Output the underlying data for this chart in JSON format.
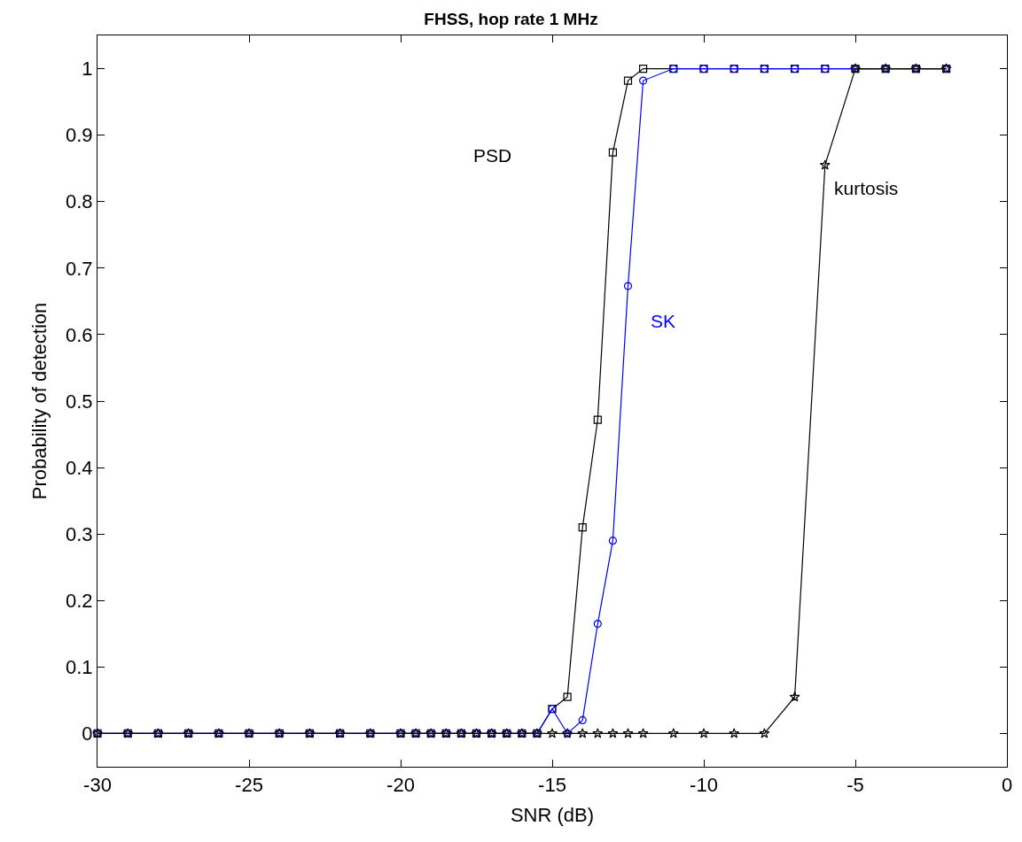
{
  "chart_data": {
    "type": "line",
    "title": "FHSS, hop rate 1 MHz",
    "xlabel": "SNR (dB)",
    "ylabel": "Probability of detection",
    "x": [
      -30,
      -29,
      -28,
      -27,
      -26,
      -25,
      -24,
      -23,
      -22,
      -21,
      -20,
      -19.5,
      -19,
      -18.5,
      -18,
      -17.5,
      -17,
      -16.5,
      -16,
      -15.5,
      -15,
      -14.5,
      -14,
      -13.5,
      -13,
      -12.5,
      -12,
      -11,
      -10,
      -9,
      -8,
      -7,
      -6,
      -5,
      -4,
      -3,
      -2
    ],
    "series": [
      {
        "name": "PSD",
        "color": "#000000",
        "marker": "square",
        "values": [
          0,
          0,
          0,
          0,
          0,
          0,
          0,
          0,
          0,
          0,
          0,
          0,
          0,
          0,
          0,
          0,
          0,
          0,
          0,
          0,
          0.037,
          0.055,
          0.31,
          0.472,
          0.874,
          0.982,
          1,
          1,
          1,
          1,
          1,
          1,
          1,
          1,
          1,
          1,
          1
        ]
      },
      {
        "name": "SK",
        "color": "#0000ff",
        "marker": "circle",
        "values": [
          0,
          0,
          0,
          0,
          0,
          0,
          0,
          0,
          0,
          0,
          0,
          0,
          0,
          0,
          0,
          0,
          0,
          0,
          0,
          0,
          0.037,
          0,
          0.02,
          0.165,
          0.29,
          0.673,
          0.982,
          1,
          1,
          1,
          1,
          1,
          1,
          1,
          1,
          1,
          1
        ]
      },
      {
        "name": "kurtosis",
        "color": "#000000",
        "marker": "star",
        "values": [
          0,
          0,
          0,
          0,
          0,
          0,
          0,
          0,
          0,
          0,
          0,
          0,
          0,
          0,
          0,
          0,
          0,
          0,
          0,
          0,
          0,
          0,
          0,
          0,
          0,
          0,
          0,
          0,
          0,
          0,
          0,
          0.055,
          0.855,
          1,
          1,
          1,
          1
        ]
      }
    ],
    "xlim": [
      -30,
      0
    ],
    "xticks": [
      -30,
      -25,
      -20,
      -15,
      -10,
      -5,
      0
    ],
    "ylim": [
      -0.05,
      1.05
    ],
    "yticks": [
      0,
      0.1,
      0.2,
      0.3,
      0.4,
      0.5,
      0.6,
      0.7,
      0.8,
      0.9,
      1
    ],
    "legend": false,
    "line_style": "solid"
  }
}
